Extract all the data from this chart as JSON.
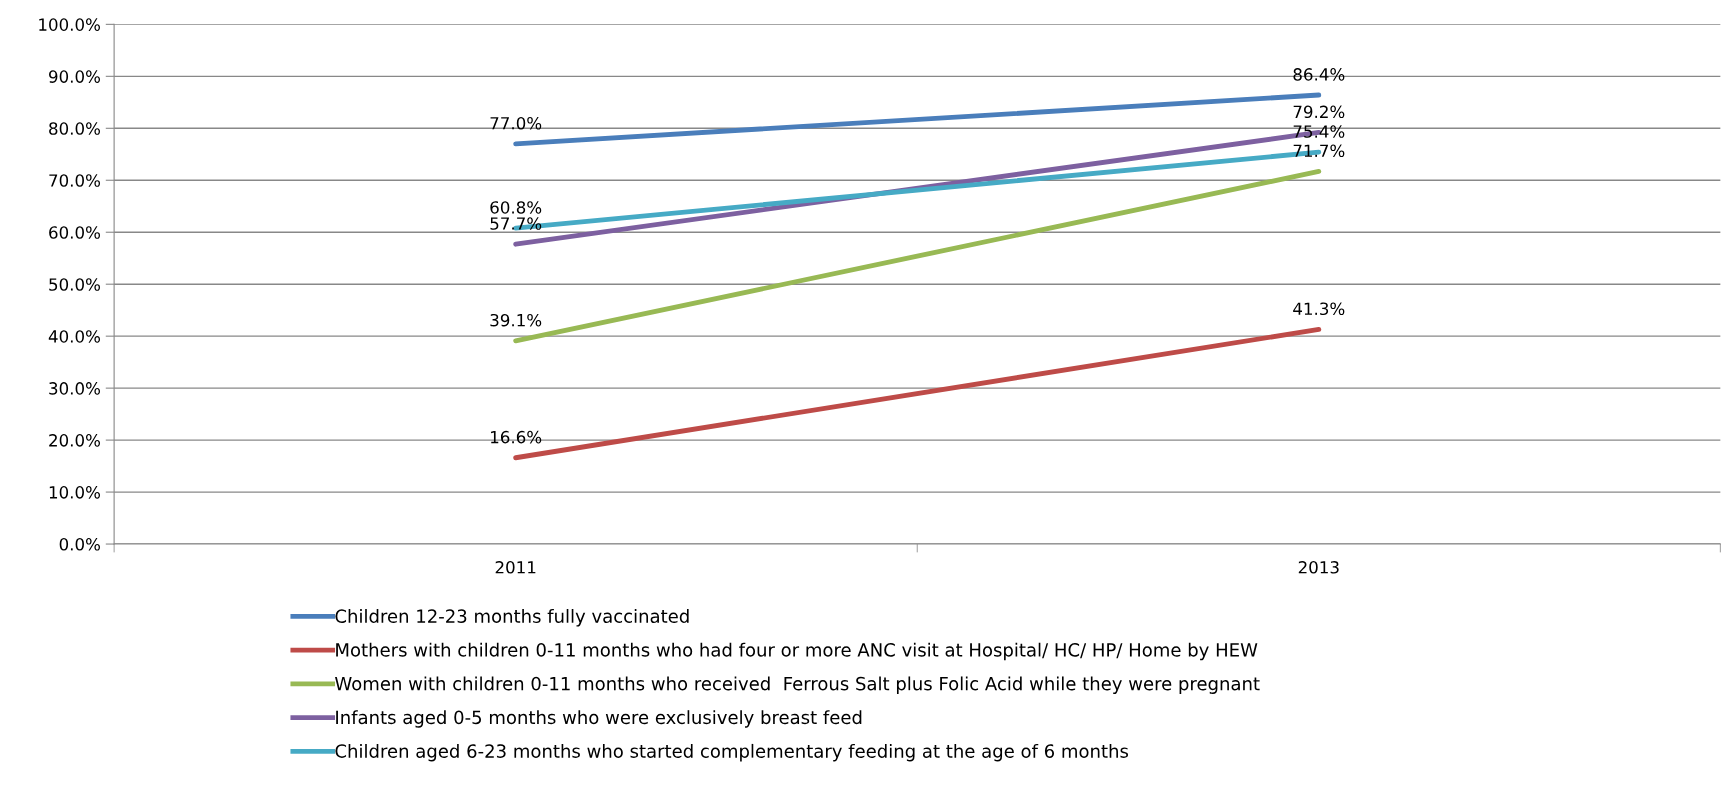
{
  "chart_data": {
    "type": "line",
    "categories": [
      "2011",
      "2013"
    ],
    "series": [
      {
        "name": "Children 12-23 months fully vaccinated",
        "color": "#4a7ebb",
        "values": [
          77.0,
          86.4
        ],
        "value_labels": [
          "77.0%",
          "86.4%"
        ]
      },
      {
        "name": "Mothers with children 0-11 months who had four or more ANC visit at Hospital/ HC/ HP/ Home by HEW",
        "color": "#be4b48",
        "values": [
          16.6,
          41.3
        ],
        "value_labels": [
          "16.6%",
          "41.3%"
        ]
      },
      {
        "name": "Women with children 0-11 months who received  Ferrous Salt plus Folic Acid while they were pregnant",
        "color": "#98b954",
        "values": [
          39.1,
          71.7
        ],
        "value_labels": [
          "39.1%",
          "71.7%"
        ]
      },
      {
        "name": "Infants aged 0-5 months who were exclusively breast feed",
        "color": "#7d60a0",
        "values": [
          57.7,
          79.2
        ],
        "value_labels": [
          "57.7%",
          "79.2%"
        ]
      },
      {
        "name": "Children aged 6-23 months who started complementary feeding at the age of 6 months",
        "color": "#46aac5",
        "values": [
          60.8,
          75.4
        ],
        "value_labels": [
          "60.8%",
          "75.4%"
        ]
      }
    ],
    "ylim": [
      0,
      100
    ],
    "yticks": [
      {
        "value": 0,
        "label": "0.0%"
      },
      {
        "value": 10,
        "label": "10.0%"
      },
      {
        "value": 20,
        "label": "20.0%"
      },
      {
        "value": 30,
        "label": "30.0%"
      },
      {
        "value": 40,
        "label": "40.0%"
      },
      {
        "value": 50,
        "label": "50.0%"
      },
      {
        "value": 60,
        "label": "60.0%"
      },
      {
        "value": 70,
        "label": "70.0%"
      },
      {
        "value": 80,
        "label": "80.0%"
      },
      {
        "value": 90,
        "label": "90.0%"
      },
      {
        "value": 100,
        "label": "100.0%"
      }
    ],
    "grid": "y",
    "legend": "bottom",
    "marker": "none",
    "line_style": "solid"
  }
}
